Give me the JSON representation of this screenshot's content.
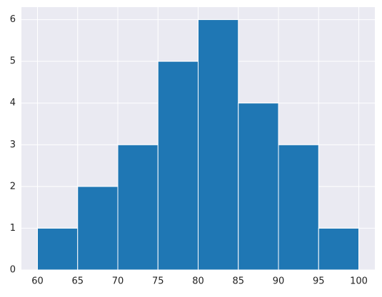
{
  "chart_data": {
    "type": "histogram",
    "bins": [
      60,
      65,
      70,
      75,
      80,
      85,
      90,
      95,
      100
    ],
    "values": [
      1,
      2,
      3,
      5,
      6,
      4,
      3,
      1
    ],
    "color": "#1f77b4",
    "xlim": [
      58,
      102
    ],
    "xticks": [
      60,
      65,
      70,
      75,
      80,
      85,
      90,
      95,
      100
    ],
    "ylim": [
      0,
      6.3
    ],
    "yticks": [
      0,
      1,
      2,
      3,
      4,
      5,
      6
    ],
    "grid": true
  }
}
